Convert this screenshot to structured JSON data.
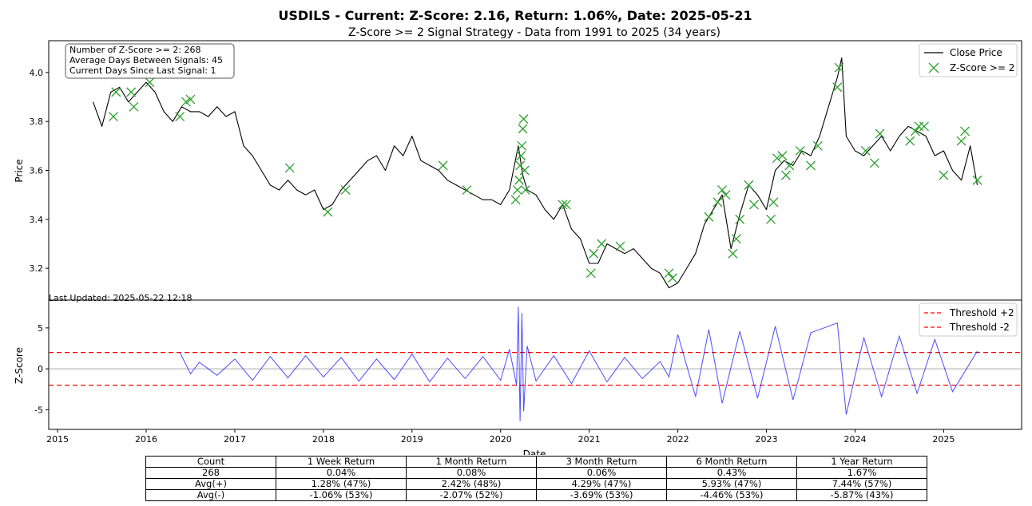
{
  "chart_data": [
    {
      "type": "line",
      "title": "USDILS - Current: Z-Score: 2.16, Return: 1.06%, Date: 2025-05-21",
      "subtitle": "Z-Score >= 2 Signal Strategy - Data from 1991 to 2025 (34 years)",
      "ylabel": "Price",
      "xlim": [
        2014.9,
        2025.88
      ],
      "ylim": [
        3.07,
        4.13
      ],
      "y_ticks": [
        3.2,
        3.4,
        3.6,
        3.8,
        4.0
      ],
      "y_tick_labels": [
        "3.2",
        "3.4",
        "3.6",
        "3.8",
        "4.0"
      ],
      "grid": false,
      "legend_position": "top-right",
      "legend": [
        "Close Price",
        "Z-Score >= 2"
      ],
      "stats_box": [
        "Number of Z-Score >= 2: 268",
        "Average Days Between Signals: 45",
        "Current Days Since Last Signal: 1"
      ],
      "footnote": "Last Updated: 2025-05-22 12:18",
      "series": [
        {
          "name": "Close Price",
          "color": "#000000",
          "x": [
            2015.4,
            2015.5,
            2015.6,
            2015.7,
            2015.8,
            2015.9,
            2016.0,
            2016.1,
            2016.2,
            2016.3,
            2016.4,
            2016.5,
            2016.6,
            2016.7,
            2016.8,
            2016.9,
            2017.0,
            2017.1,
            2017.2,
            2017.3,
            2017.4,
            2017.5,
            2017.6,
            2017.7,
            2017.8,
            2017.9,
            2018.0,
            2018.1,
            2018.2,
            2018.3,
            2018.4,
            2018.5,
            2018.6,
            2018.7,
            2018.8,
            2018.9,
            2019.0,
            2019.1,
            2019.2,
            2019.3,
            2019.4,
            2019.5,
            2019.6,
            2019.7,
            2019.8,
            2019.9,
            2020.0,
            2020.1,
            2020.2,
            2020.25,
            2020.3,
            2020.4,
            2020.5,
            2020.6,
            2020.7,
            2020.8,
            2020.9,
            2021.0,
            2021.1,
            2021.2,
            2021.3,
            2021.4,
            2021.5,
            2021.6,
            2021.7,
            2021.8,
            2021.9,
            2022.0,
            2022.1,
            2022.2,
            2022.3,
            2022.4,
            2022.5,
            2022.6,
            2022.7,
            2022.8,
            2022.9,
            2023.0,
            2023.1,
            2023.2,
            2023.3,
            2023.4,
            2023.5,
            2023.6,
            2023.7,
            2023.8,
            2023.85,
            2023.9,
            2024.0,
            2024.1,
            2024.2,
            2024.3,
            2024.4,
            2024.5,
            2024.6,
            2024.7,
            2024.8,
            2024.9,
            2025.0,
            2025.1,
            2025.2,
            2025.3,
            2025.38
          ],
          "values": [
            3.88,
            3.78,
            3.92,
            3.94,
            3.88,
            3.92,
            3.96,
            3.92,
            3.84,
            3.8,
            3.86,
            3.84,
            3.84,
            3.82,
            3.86,
            3.82,
            3.84,
            3.7,
            3.66,
            3.6,
            3.54,
            3.52,
            3.56,
            3.52,
            3.5,
            3.52,
            3.44,
            3.46,
            3.52,
            3.56,
            3.6,
            3.64,
            3.66,
            3.6,
            3.7,
            3.66,
            3.74,
            3.64,
            3.62,
            3.6,
            3.56,
            3.54,
            3.52,
            3.5,
            3.48,
            3.48,
            3.46,
            3.52,
            3.7,
            3.58,
            3.52,
            3.5,
            3.44,
            3.4,
            3.46,
            3.36,
            3.32,
            3.22,
            3.22,
            3.3,
            3.28,
            3.26,
            3.28,
            3.24,
            3.2,
            3.18,
            3.12,
            3.14,
            3.2,
            3.26,
            3.38,
            3.44,
            3.5,
            3.28,
            3.42,
            3.54,
            3.5,
            3.44,
            3.6,
            3.64,
            3.62,
            3.68,
            3.66,
            3.74,
            3.86,
            3.98,
            4.06,
            3.74,
            3.68,
            3.66,
            3.7,
            3.74,
            3.68,
            3.74,
            3.78,
            3.76,
            3.74,
            3.66,
            3.68,
            3.6,
            3.56,
            3.7,
            3.54
          ]
        },
        {
          "name": "Z-Score >= 2",
          "color": "#2ca02c",
          "x": [
            2015.63,
            2015.66,
            2015.83,
            2015.86,
            2016.04,
            2016.38,
            2016.45,
            2016.5,
            2017.62,
            2018.05,
            2018.25,
            2019.35,
            2019.62,
            2020.17,
            2020.19,
            2020.21,
            2020.22,
            2020.23,
            2020.24,
            2020.25,
            2020.26,
            2020.27,
            2020.28,
            2020.7,
            2020.74,
            2021.02,
            2021.05,
            2021.14,
            2021.35,
            2021.9,
            2021.94,
            2022.35,
            2022.45,
            2022.5,
            2022.54,
            2022.62,
            2022.66,
            2022.7,
            2022.8,
            2022.86,
            2023.05,
            2023.08,
            2023.12,
            2023.18,
            2023.22,
            2023.26,
            2023.38,
            2023.5,
            2023.58,
            2023.8,
            2023.82,
            2024.12,
            2024.22,
            2024.28,
            2024.62,
            2024.68,
            2024.72,
            2024.78,
            2025.0,
            2025.2,
            2025.24,
            2025.38
          ],
          "values": [
            3.82,
            3.92,
            3.92,
            3.86,
            3.96,
            3.82,
            3.88,
            3.89,
            3.61,
            3.43,
            3.52,
            3.62,
            3.52,
            3.48,
            3.52,
            3.56,
            3.62,
            3.66,
            3.7,
            3.77,
            3.81,
            3.6,
            3.52,
            3.46,
            3.46,
            3.18,
            3.26,
            3.3,
            3.29,
            3.18,
            3.16,
            3.41,
            3.47,
            3.52,
            3.5,
            3.26,
            3.32,
            3.4,
            3.54,
            3.46,
            3.4,
            3.47,
            3.65,
            3.66,
            3.58,
            3.62,
            3.68,
            3.62,
            3.7,
            3.94,
            4.02,
            3.68,
            3.63,
            3.75,
            3.72,
            3.76,
            3.78,
            3.78,
            3.58,
            3.72,
            3.76,
            3.56
          ]
        }
      ]
    },
    {
      "type": "line",
      "xlabel": "Date",
      "ylabel": "Z-Score",
      "xlim": [
        2014.9,
        2025.88
      ],
      "ylim": [
        -7.4,
        8.4
      ],
      "y_ticks": [
        -5,
        0,
        5
      ],
      "y_tick_labels": [
        "-5",
        "0",
        "5"
      ],
      "x_ticks": [
        2015,
        2016,
        2017,
        2018,
        2019,
        2020,
        2021,
        2022,
        2023,
        2024,
        2025
      ],
      "x_tick_labels": [
        "2015",
        "2016",
        "2017",
        "2018",
        "2019",
        "2020",
        "2021",
        "2022",
        "2023",
        "2024",
        "2025"
      ],
      "legend_position": "top-right",
      "legend": [
        "Threshold +2",
        "Threshold -2"
      ],
      "thresholds": [
        2,
        -2
      ],
      "threshold_color": "#ff0000",
      "series": [
        {
          "name": "Z-Score",
          "color": "#0000ff",
          "x": [
            2016.38,
            2016.5,
            2016.6,
            2016.8,
            2017.0,
            2017.2,
            2017.4,
            2017.6,
            2017.8,
            2018.0,
            2018.2,
            2018.4,
            2018.6,
            2018.8,
            2019.0,
            2019.2,
            2019.4,
            2019.6,
            2019.8,
            2020.0,
            2020.1,
            2020.18,
            2020.2,
            2020.22,
            2020.24,
            2020.26,
            2020.3,
            2020.4,
            2020.6,
            2020.8,
            2021.0,
            2021.2,
            2021.4,
            2021.6,
            2021.8,
            2021.9,
            2022.0,
            2022.2,
            2022.35,
            2022.5,
            2022.7,
            2022.9,
            2023.1,
            2023.3,
            2023.5,
            2023.8,
            2023.9,
            2024.1,
            2024.3,
            2024.5,
            2024.7,
            2024.9,
            2025.1,
            2025.38
          ],
          "values": [
            2.0,
            -0.6,
            0.8,
            -0.8,
            1.2,
            -1.4,
            1.5,
            -1.1,
            1.6,
            -1.0,
            1.4,
            -1.5,
            1.2,
            -1.3,
            1.8,
            -1.6,
            1.3,
            -1.2,
            1.5,
            -1.4,
            2.4,
            -2.0,
            7.6,
            -6.4,
            6.8,
            -5.2,
            2.8,
            -1.5,
            1.6,
            -1.8,
            2.2,
            -1.6,
            1.4,
            -1.2,
            0.9,
            -1.0,
            4.2,
            -3.4,
            4.8,
            -4.2,
            4.6,
            -3.6,
            5.2,
            -3.8,
            4.4,
            5.6,
            -5.6,
            3.8,
            -3.4,
            4.0,
            -3.0,
            3.6,
            -2.8,
            2.16
          ]
        }
      ]
    }
  ],
  "table": {
    "headers": [
      "Count",
      "1 Week Return",
      "1 Month Return",
      "3 Month Return",
      "6 Month Return",
      "1 Year Return"
    ],
    "rows": [
      [
        "268",
        "0.04%",
        "0.08%",
        "0.06%",
        "0.43%",
        "1.67%"
      ],
      [
        "Avg(+)",
        "1.28% (47%)",
        "2.42% (48%)",
        "4.29% (47%)",
        "5.93% (47%)",
        "7.44% (57%)"
      ],
      [
        "Avg(-)",
        "-1.06% (53%)",
        "-2.07% (52%)",
        "-3.69% (53%)",
        "-4.46% (53%)",
        "-5.87% (43%)"
      ]
    ]
  }
}
